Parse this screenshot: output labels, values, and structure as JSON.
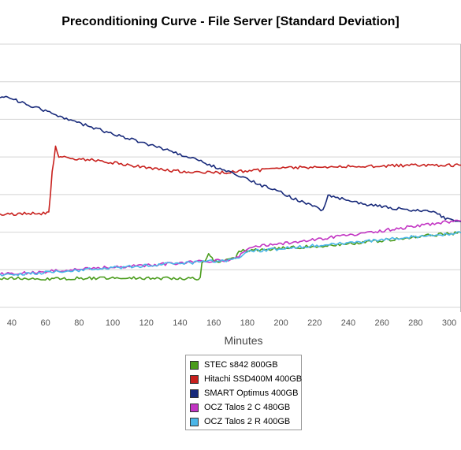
{
  "chart_data": {
    "type": "line",
    "title": "Preconditioning Curve - File Server [Standard Deviation]",
    "xlabel": "Minutes",
    "ylabel": "",
    "x_ticks": [
      40,
      60,
      80,
      100,
      120,
      140,
      160,
      180,
      200,
      220,
      240,
      260,
      280,
      300
    ],
    "xlim": [
      33,
      307
    ],
    "ylim": [
      0,
      7
    ],
    "grid": true,
    "legend_position": "bottom-center",
    "series": [
      {
        "name": "STEC s842 800GB",
        "color": "#4a9c1c",
        "points": [
          [
            33,
            0.78
          ],
          [
            40,
            0.77
          ],
          [
            50,
            0.77
          ],
          [
            60,
            0.76
          ],
          [
            70,
            0.76
          ],
          [
            80,
            0.77
          ],
          [
            90,
            0.77
          ],
          [
            100,
            0.77
          ],
          [
            110,
            0.78
          ],
          [
            120,
            0.77
          ],
          [
            130,
            0.77
          ],
          [
            140,
            0.77
          ],
          [
            150,
            0.77
          ],
          [
            152,
            0.78
          ],
          [
            153,
            1.18
          ],
          [
            155,
            1.2
          ],
          [
            157,
            1.45
          ],
          [
            160,
            1.22
          ],
          [
            165,
            1.24
          ],
          [
            170,
            1.28
          ],
          [
            173,
            1.3
          ],
          [
            175,
            1.52
          ],
          [
            180,
            1.5
          ],
          [
            190,
            1.55
          ],
          [
            200,
            1.57
          ],
          [
            210,
            1.6
          ],
          [
            220,
            1.62
          ],
          [
            230,
            1.65
          ],
          [
            240,
            1.68
          ],
          [
            250,
            1.73
          ],
          [
            260,
            1.78
          ],
          [
            270,
            1.83
          ],
          [
            280,
            1.88
          ],
          [
            290,
            1.92
          ],
          [
            300,
            1.96
          ],
          [
            307,
            1.98
          ]
        ]
      },
      {
        "name": "Hitachi SSD400M 400GB",
        "color": "#c8201d",
        "points": [
          [
            33,
            2.48
          ],
          [
            40,
            2.48
          ],
          [
            50,
            2.5
          ],
          [
            55,
            2.5
          ],
          [
            60,
            2.5
          ],
          [
            62,
            2.5
          ],
          [
            64,
            3.6
          ],
          [
            66,
            4.25
          ],
          [
            68,
            4.0
          ],
          [
            70,
            4.0
          ],
          [
            80,
            3.95
          ],
          [
            90,
            3.9
          ],
          [
            100,
            3.85
          ],
          [
            110,
            3.78
          ],
          [
            120,
            3.72
          ],
          [
            130,
            3.66
          ],
          [
            140,
            3.62
          ],
          [
            150,
            3.58
          ],
          [
            160,
            3.58
          ],
          [
            170,
            3.6
          ],
          [
            180,
            3.62
          ],
          [
            190,
            3.66
          ],
          [
            200,
            3.7
          ],
          [
            210,
            3.72
          ],
          [
            220,
            3.73
          ],
          [
            230,
            3.74
          ],
          [
            240,
            3.75
          ],
          [
            250,
            3.76
          ],
          [
            260,
            3.76
          ],
          [
            270,
            3.77
          ],
          [
            280,
            3.77
          ],
          [
            290,
            3.77
          ],
          [
            300,
            3.78
          ],
          [
            307,
            3.78
          ]
        ]
      },
      {
        "name": "SMART Optimus 400GB",
        "color": "#17297a",
        "points": [
          [
            33,
            5.6
          ],
          [
            40,
            5.55
          ],
          [
            50,
            5.38
          ],
          [
            60,
            5.22
          ],
          [
            70,
            5.05
          ],
          [
            80,
            4.9
          ],
          [
            90,
            4.75
          ],
          [
            100,
            4.62
          ],
          [
            110,
            4.48
          ],
          [
            120,
            4.35
          ],
          [
            130,
            4.22
          ],
          [
            140,
            4.08
          ],
          [
            150,
            3.92
          ],
          [
            160,
            3.75
          ],
          [
            170,
            3.58
          ],
          [
            180,
            3.4
          ],
          [
            190,
            3.22
          ],
          [
            200,
            3.05
          ],
          [
            210,
            2.85
          ],
          [
            220,
            2.68
          ],
          [
            225,
            2.58
          ],
          [
            228,
            2.95
          ],
          [
            230,
            2.95
          ],
          [
            240,
            2.85
          ],
          [
            250,
            2.75
          ],
          [
            260,
            2.68
          ],
          [
            270,
            2.62
          ],
          [
            280,
            2.58
          ],
          [
            288,
            2.55
          ],
          [
            292,
            2.5
          ],
          [
            300,
            2.32
          ],
          [
            307,
            2.28
          ]
        ]
      },
      {
        "name": "OCZ Talos 2 C 480GB",
        "color": "#c234c3",
        "points": [
          [
            33,
            0.88
          ],
          [
            40,
            0.9
          ],
          [
            50,
            0.92
          ],
          [
            60,
            0.95
          ],
          [
            70,
            0.98
          ],
          [
            80,
            1.01
          ],
          [
            90,
            1.04
          ],
          [
            100,
            1.07
          ],
          [
            110,
            1.1
          ],
          [
            120,
            1.12
          ],
          [
            130,
            1.15
          ],
          [
            140,
            1.18
          ],
          [
            150,
            1.21
          ],
          [
            160,
            1.24
          ],
          [
            170,
            1.26
          ],
          [
            175,
            1.35
          ],
          [
            180,
            1.58
          ],
          [
            190,
            1.65
          ],
          [
            200,
            1.7
          ],
          [
            210,
            1.75
          ],
          [
            220,
            1.8
          ],
          [
            230,
            1.86
          ],
          [
            240,
            1.92
          ],
          [
            250,
            1.98
          ],
          [
            260,
            2.04
          ],
          [
            270,
            2.1
          ],
          [
            280,
            2.16
          ],
          [
            290,
            2.22
          ],
          [
            300,
            2.28
          ],
          [
            307,
            2.3
          ]
        ]
      },
      {
        "name": "OCZ Talos 2 R 400GB",
        "color": "#4bb6e8",
        "points": [
          [
            33,
            0.86
          ],
          [
            40,
            0.88
          ],
          [
            50,
            0.9
          ],
          [
            60,
            0.93
          ],
          [
            70,
            0.96
          ],
          [
            80,
            0.99
          ],
          [
            90,
            1.02
          ],
          [
            100,
            1.05
          ],
          [
            110,
            1.08
          ],
          [
            120,
            1.11
          ],
          [
            130,
            1.14
          ],
          [
            140,
            1.17
          ],
          [
            150,
            1.2
          ],
          [
            160,
            1.23
          ],
          [
            170,
            1.25
          ],
          [
            175,
            1.3
          ],
          [
            180,
            1.48
          ],
          [
            190,
            1.52
          ],
          [
            200,
            1.56
          ],
          [
            210,
            1.6
          ],
          [
            220,
            1.64
          ],
          [
            230,
            1.68
          ],
          [
            240,
            1.72
          ],
          [
            250,
            1.76
          ],
          [
            260,
            1.8
          ],
          [
            270,
            1.84
          ],
          [
            280,
            1.88
          ],
          [
            290,
            1.92
          ],
          [
            300,
            1.95
          ],
          [
            307,
            1.98
          ]
        ]
      }
    ]
  }
}
